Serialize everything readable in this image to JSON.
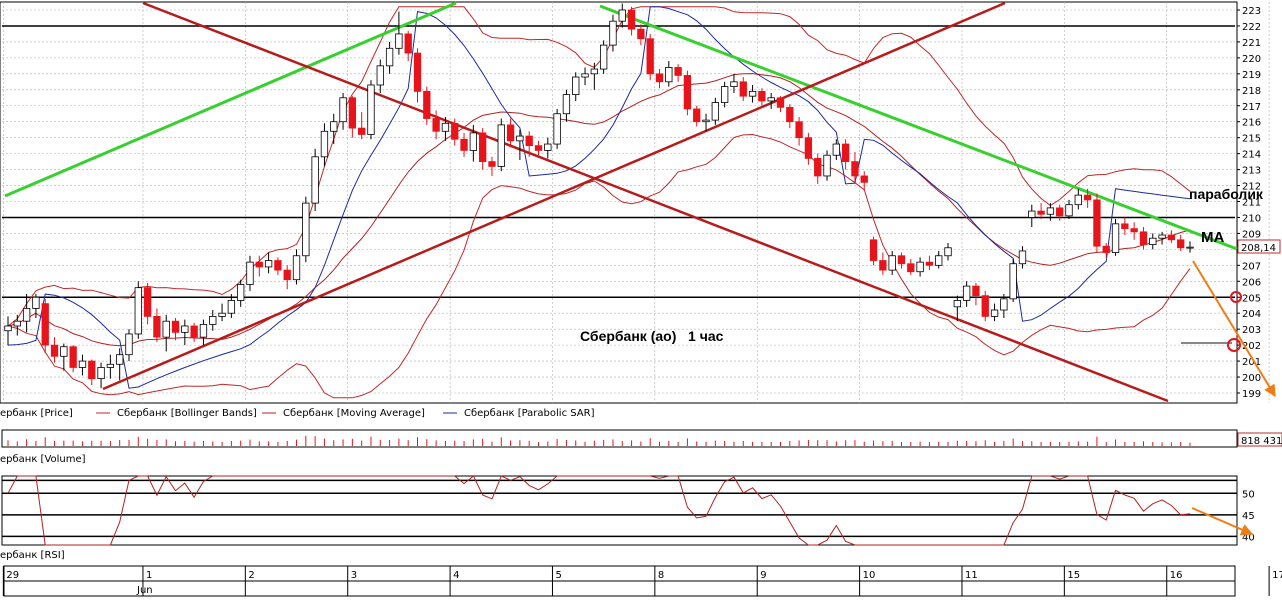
{
  "chart_data": {
    "type": "candlestick",
    "title": "Сбербанк (ао)   1 час",
    "price_axis": {
      "ylim": [
        199,
        223
      ],
      "ticks": [
        199,
        200,
        201,
        202,
        203,
        204,
        205,
        206,
        207,
        208,
        209,
        210,
        211,
        212,
        213,
        214,
        215,
        216,
        217,
        218,
        219,
        220,
        221,
        222,
        223
      ],
      "last_price_label": "208,14",
      "grid": true
    },
    "candles": [
      {
        "o": 202.9,
        "h": 203.8,
        "l": 202.0,
        "c": 203.2
      },
      {
        "o": 203.2,
        "h": 203.9,
        "l": 202.6,
        "c": 203.5
      },
      {
        "o": 203.5,
        "h": 205.2,
        "l": 202.8,
        "c": 204.3
      },
      {
        "o": 204.3,
        "h": 205.2,
        "l": 203.7,
        "c": 205.0
      },
      {
        "o": 204.6,
        "h": 204.9,
        "l": 201.5,
        "c": 202.0
      },
      {
        "o": 202.0,
        "h": 202.5,
        "l": 200.9,
        "c": 201.3
      },
      {
        "o": 201.3,
        "h": 202.1,
        "l": 200.4,
        "c": 201.9
      },
      {
        "o": 201.9,
        "h": 202.0,
        "l": 200.3,
        "c": 200.6
      },
      {
        "o": 200.6,
        "h": 201.4,
        "l": 200.1,
        "c": 201.0
      },
      {
        "o": 201.0,
        "h": 201.1,
        "l": 199.5,
        "c": 199.9
      },
      {
        "o": 199.9,
        "h": 200.9,
        "l": 199.3,
        "c": 200.6
      },
      {
        "o": 200.6,
        "h": 201.4,
        "l": 199.9,
        "c": 200.8
      },
      {
        "o": 200.8,
        "h": 201.8,
        "l": 199.8,
        "c": 201.4
      },
      {
        "o": 201.4,
        "h": 203.0,
        "l": 201.0,
        "c": 202.7
      },
      {
        "o": 202.7,
        "h": 206.0,
        "l": 202.4,
        "c": 205.6
      },
      {
        "o": 205.6,
        "h": 205.9,
        "l": 203.3,
        "c": 203.8
      },
      {
        "o": 203.8,
        "h": 204.3,
        "l": 202.2,
        "c": 202.5
      },
      {
        "o": 202.5,
        "h": 203.9,
        "l": 201.6,
        "c": 203.5
      },
      {
        "o": 203.5,
        "h": 203.7,
        "l": 202.3,
        "c": 202.8
      },
      {
        "o": 202.8,
        "h": 203.6,
        "l": 202.0,
        "c": 203.2
      },
      {
        "o": 203.2,
        "h": 203.4,
        "l": 202.2,
        "c": 202.5
      },
      {
        "o": 202.5,
        "h": 203.6,
        "l": 202.0,
        "c": 203.3
      },
      {
        "o": 203.3,
        "h": 204.2,
        "l": 202.9,
        "c": 203.8
      },
      {
        "o": 203.8,
        "h": 204.6,
        "l": 203.5,
        "c": 204.0
      },
      {
        "o": 204.0,
        "h": 205.2,
        "l": 203.7,
        "c": 204.8
      },
      {
        "o": 204.8,
        "h": 206.1,
        "l": 204.4,
        "c": 205.8
      },
      {
        "o": 205.8,
        "h": 207.6,
        "l": 205.4,
        "c": 207.2
      },
      {
        "o": 207.2,
        "h": 207.6,
        "l": 206.3,
        "c": 206.9
      },
      {
        "o": 206.9,
        "h": 207.8,
        "l": 206.5,
        "c": 207.3
      },
      {
        "o": 207.3,
        "h": 207.5,
        "l": 206.4,
        "c": 206.7
      },
      {
        "o": 206.7,
        "h": 207.0,
        "l": 205.5,
        "c": 206.1
      },
      {
        "o": 206.1,
        "h": 208.0,
        "l": 205.8,
        "c": 207.6
      },
      {
        "o": 207.6,
        "h": 211.3,
        "l": 207.2,
        "c": 210.9
      },
      {
        "o": 210.9,
        "h": 214.3,
        "l": 210.4,
        "c": 213.8
      },
      {
        "o": 213.8,
        "h": 215.9,
        "l": 213.2,
        "c": 215.4
      },
      {
        "o": 215.4,
        "h": 216.5,
        "l": 214.6,
        "c": 216.0
      },
      {
        "o": 216.0,
        "h": 217.8,
        "l": 215.5,
        "c": 217.5
      },
      {
        "o": 217.5,
        "h": 217.6,
        "l": 215.0,
        "c": 215.6
      },
      {
        "o": 215.6,
        "h": 216.6,
        "l": 214.9,
        "c": 215.2
      },
      {
        "o": 215.2,
        "h": 218.6,
        "l": 214.9,
        "c": 218.3
      },
      {
        "o": 218.3,
        "h": 219.9,
        "l": 217.8,
        "c": 219.5
      },
      {
        "o": 219.5,
        "h": 221.0,
        "l": 219.0,
        "c": 220.6
      },
      {
        "o": 220.6,
        "h": 222.9,
        "l": 220.2,
        "c": 221.5
      },
      {
        "o": 221.5,
        "h": 221.7,
        "l": 219.8,
        "c": 220.3
      },
      {
        "o": 220.3,
        "h": 220.6,
        "l": 217.2,
        "c": 217.9
      },
      {
        "o": 217.9,
        "h": 218.2,
        "l": 215.8,
        "c": 216.2
      },
      {
        "o": 216.2,
        "h": 216.7,
        "l": 214.9,
        "c": 215.4
      },
      {
        "o": 215.4,
        "h": 216.3,
        "l": 214.8,
        "c": 215.9
      },
      {
        "o": 215.9,
        "h": 216.2,
        "l": 214.5,
        "c": 214.9
      },
      {
        "o": 214.9,
        "h": 215.3,
        "l": 213.8,
        "c": 214.2
      },
      {
        "o": 214.2,
        "h": 215.8,
        "l": 213.5,
        "c": 215.3
      },
      {
        "o": 215.3,
        "h": 215.6,
        "l": 213.0,
        "c": 213.5
      },
      {
        "o": 213.5,
        "h": 213.8,
        "l": 212.6,
        "c": 213.2
      },
      {
        "o": 213.2,
        "h": 216.2,
        "l": 212.9,
        "c": 215.8
      },
      {
        "o": 215.8,
        "h": 216.2,
        "l": 214.4,
        "c": 214.8
      },
      {
        "o": 214.8,
        "h": 215.5,
        "l": 213.6,
        "c": 215.1
      },
      {
        "o": 215.1,
        "h": 215.4,
        "l": 213.8,
        "c": 214.5
      },
      {
        "o": 214.5,
        "h": 214.8,
        "l": 213.9,
        "c": 214.2
      },
      {
        "o": 214.2,
        "h": 215.0,
        "l": 213.7,
        "c": 214.6
      },
      {
        "o": 214.6,
        "h": 216.8,
        "l": 214.3,
        "c": 216.5
      },
      {
        "o": 216.5,
        "h": 218.0,
        "l": 216.0,
        "c": 217.7
      },
      {
        "o": 217.7,
        "h": 219.1,
        "l": 217.3,
        "c": 218.8
      },
      {
        "o": 218.8,
        "h": 219.4,
        "l": 218.3,
        "c": 219.0
      },
      {
        "o": 219.0,
        "h": 219.7,
        "l": 218.0,
        "c": 219.3
      },
      {
        "o": 219.3,
        "h": 221.1,
        "l": 219.0,
        "c": 220.8
      },
      {
        "o": 220.8,
        "h": 222.7,
        "l": 220.4,
        "c": 222.3
      },
      {
        "o": 222.3,
        "h": 223.4,
        "l": 221.9,
        "c": 223.0
      },
      {
        "o": 223.0,
        "h": 223.2,
        "l": 221.4,
        "c": 221.8
      },
      {
        "o": 221.8,
        "h": 222.1,
        "l": 220.8,
        "c": 221.2
      },
      {
        "o": 221.2,
        "h": 221.5,
        "l": 218.6,
        "c": 219.0
      },
      {
        "o": 219.0,
        "h": 219.3,
        "l": 218.1,
        "c": 218.5
      },
      {
        "o": 218.5,
        "h": 219.8,
        "l": 218.2,
        "c": 219.4
      },
      {
        "o": 219.4,
        "h": 219.6,
        "l": 218.5,
        "c": 218.9
      },
      {
        "o": 218.9,
        "h": 219.2,
        "l": 216.4,
        "c": 216.8
      },
      {
        "o": 216.8,
        "h": 217.0,
        "l": 215.7,
        "c": 216.0
      },
      {
        "o": 216.0,
        "h": 216.5,
        "l": 215.4,
        "c": 216.1
      },
      {
        "o": 216.1,
        "h": 217.5,
        "l": 215.8,
        "c": 217.2
      },
      {
        "o": 217.2,
        "h": 218.5,
        "l": 216.9,
        "c": 218.2
      },
      {
        "o": 218.2,
        "h": 219.0,
        "l": 217.8,
        "c": 218.5
      },
      {
        "o": 218.5,
        "h": 218.8,
        "l": 217.3,
        "c": 217.6
      },
      {
        "o": 217.6,
        "h": 218.3,
        "l": 217.2,
        "c": 217.9
      },
      {
        "o": 217.9,
        "h": 218.1,
        "l": 217.0,
        "c": 217.3
      },
      {
        "o": 217.3,
        "h": 217.8,
        "l": 216.8,
        "c": 217.5
      },
      {
        "o": 217.5,
        "h": 217.6,
        "l": 216.6,
        "c": 216.9
      },
      {
        "o": 216.9,
        "h": 217.1,
        "l": 215.6,
        "c": 216.0
      },
      {
        "o": 216.0,
        "h": 216.3,
        "l": 214.5,
        "c": 215.0
      },
      {
        "o": 215.0,
        "h": 215.3,
        "l": 213.3,
        "c": 213.7
      },
      {
        "o": 213.7,
        "h": 214.0,
        "l": 212.1,
        "c": 212.6
      },
      {
        "o": 212.6,
        "h": 214.2,
        "l": 212.3,
        "c": 213.9
      },
      {
        "o": 213.9,
        "h": 214.9,
        "l": 213.6,
        "c": 214.6
      },
      {
        "o": 214.6,
        "h": 214.9,
        "l": 213.0,
        "c": 213.5
      },
      {
        "o": 213.5,
        "h": 214.1,
        "l": 212.2,
        "c": 212.6
      },
      {
        "o": 212.6,
        "h": 212.9,
        "l": 211.7,
        "c": 212.2
      },
      {
        "o": 208.6,
        "h": 208.8,
        "l": 207.0,
        "c": 207.3
      },
      {
        "o": 207.3,
        "h": 207.8,
        "l": 206.4,
        "c": 206.7
      },
      {
        "o": 206.7,
        "h": 207.9,
        "l": 206.4,
        "c": 207.6
      },
      {
        "o": 207.6,
        "h": 207.8,
        "l": 206.8,
        "c": 207.1
      },
      {
        "o": 207.1,
        "h": 207.4,
        "l": 206.4,
        "c": 206.6
      },
      {
        "o": 206.6,
        "h": 207.5,
        "l": 206.3,
        "c": 207.2
      },
      {
        "o": 207.2,
        "h": 207.6,
        "l": 206.7,
        "c": 207.0
      },
      {
        "o": 207.0,
        "h": 207.9,
        "l": 206.8,
        "c": 207.6
      },
      {
        "o": 207.6,
        "h": 208.4,
        "l": 207.3,
        "c": 208.1
      },
      {
        "o": 204.4,
        "h": 205.1,
        "l": 203.5,
        "c": 204.8
      },
      {
        "o": 204.8,
        "h": 206.0,
        "l": 204.4,
        "c": 205.7
      },
      {
        "o": 205.7,
        "h": 205.9,
        "l": 204.5,
        "c": 205.1
      },
      {
        "o": 205.1,
        "h": 205.4,
        "l": 203.5,
        "c": 203.8
      },
      {
        "o": 203.8,
        "h": 204.6,
        "l": 203.5,
        "c": 204.2
      },
      {
        "o": 204.2,
        "h": 205.2,
        "l": 203.7,
        "c": 204.9
      },
      {
        "o": 204.9,
        "h": 207.4,
        "l": 204.7,
        "c": 207.1
      },
      {
        "o": 207.1,
        "h": 208.2,
        "l": 206.8,
        "c": 207.9
      },
      {
        "o": 210.0,
        "h": 210.8,
        "l": 209.4,
        "c": 210.4
      },
      {
        "o": 210.4,
        "h": 210.9,
        "l": 209.9,
        "c": 210.2
      },
      {
        "o": 210.2,
        "h": 210.9,
        "l": 209.8,
        "c": 210.6
      },
      {
        "o": 210.6,
        "h": 210.8,
        "l": 209.8,
        "c": 210.1
      },
      {
        "o": 210.1,
        "h": 211.1,
        "l": 209.9,
        "c": 210.8
      },
      {
        "o": 210.8,
        "h": 211.8,
        "l": 210.5,
        "c": 211.4
      },
      {
        "o": 211.4,
        "h": 211.8,
        "l": 210.6,
        "c": 211.1
      },
      {
        "o": 211.1,
        "h": 211.5,
        "l": 207.8,
        "c": 208.2
      },
      {
        "o": 208.2,
        "h": 208.4,
        "l": 207.5,
        "c": 207.8
      },
      {
        "o": 207.8,
        "h": 209.9,
        "l": 207.6,
        "c": 209.6
      },
      {
        "o": 209.6,
        "h": 210.0,
        "l": 208.9,
        "c": 209.3
      },
      {
        "o": 209.3,
        "h": 209.7,
        "l": 208.6,
        "c": 209.1
      },
      {
        "o": 209.1,
        "h": 209.4,
        "l": 208.0,
        "c": 208.3
      },
      {
        "o": 208.3,
        "h": 209.0,
        "l": 208.0,
        "c": 208.7
      },
      {
        "o": 208.7,
        "h": 209.1,
        "l": 208.3,
        "c": 208.9
      },
      {
        "o": 208.9,
        "h": 209.2,
        "l": 208.4,
        "c": 208.6
      },
      {
        "o": 208.6,
        "h": 208.9,
        "l": 207.9,
        "c": 208.1
      },
      {
        "o": 208.1,
        "h": 208.5,
        "l": 207.8,
        "c": 208.14
      }
    ],
    "horizontal_levels": [
      222,
      210,
      205
    ],
    "legend": [
      "ербанк [Price]",
      "Сбербанк [Bollinger Bands]",
      "Сбербанк [Moving Average]",
      "Сбербанк [Parabolic SAR]"
    ],
    "volume_panel": {
      "title": "ербанк [Volume]",
      "last_value_label": "818 431"
    },
    "rsi_panel": {
      "title": "ербанк [RSI]",
      "ticks": [
        40,
        45,
        50
      ],
      "levels": [
        50,
        45,
        40
      ]
    },
    "date_axis": {
      "days": [
        "29",
        "1",
        "2",
        "3",
        "4",
        "5",
        "8",
        "9",
        "10",
        "11",
        "15",
        "16",
        "17"
      ],
      "day_start_index": [
        0,
        15,
        26,
        37,
        48,
        59,
        70,
        81,
        92,
        103,
        114,
        125,
        136
      ],
      "month_label": "Jun"
    },
    "annotations": {
      "title_label": "Сбербанк (ао)   1 час",
      "parabolic_label": "параболик",
      "ma_label": "MA"
    },
    "colors": {
      "up_candle": "#ffffff",
      "down_candle": "#e8141c",
      "bollinger": "#c0292b",
      "moving_average": "#b22222",
      "parabolic_sar": "#1d2a9e",
      "trend_green": "#37d02f",
      "trend_red": "#b71c1c",
      "forecast_arrow": "#f07c14",
      "grid": "#b0b0b0",
      "level_line": "#000000"
    }
  }
}
